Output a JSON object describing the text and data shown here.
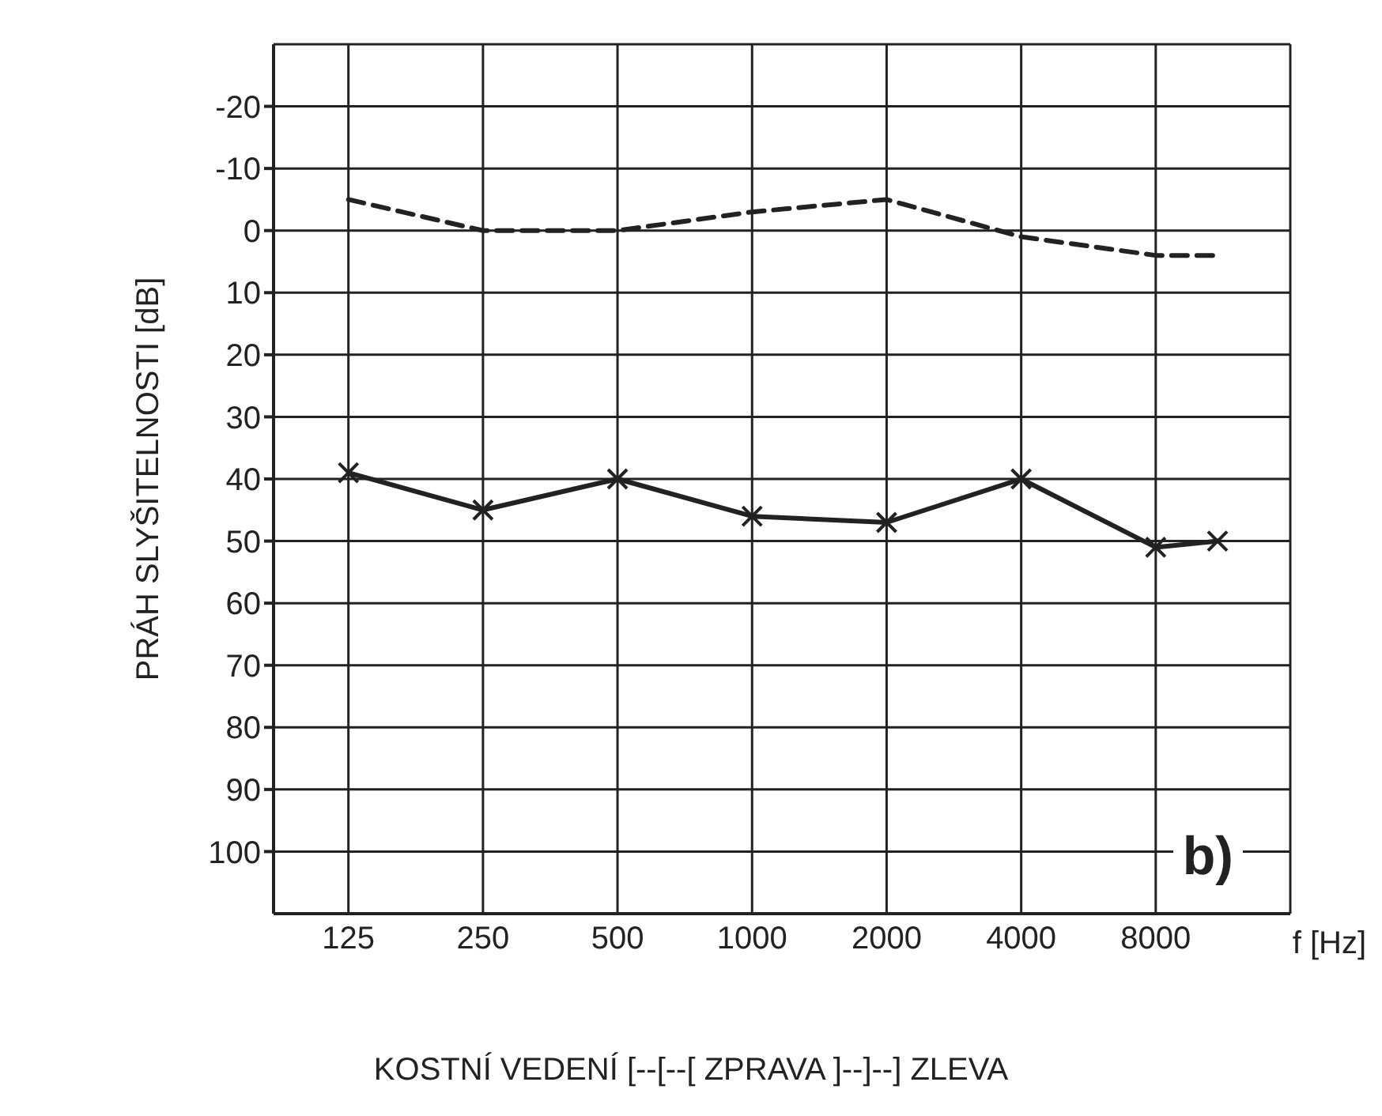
{
  "chart_data": {
    "type": "line",
    "ylabel": "PRÁH SLYŠITELNOSTI [dB]",
    "xlabel": "f [Hz]",
    "log": "x",
    "x": [
      125,
      250,
      500,
      1000,
      2000,
      4000,
      8000,
      11000
    ],
    "series": [
      {
        "color": "#222222",
        "line_style": "dashed",
        "marker": "none",
        "values": [
          -5,
          0,
          0,
          -3,
          -5,
          1,
          4,
          4
        ]
      },
      {
        "color": "#222222",
        "line_style": "solid",
        "marker": "cross",
        "values": [
          39,
          45,
          40,
          46,
          47,
          40,
          51,
          50
        ]
      }
    ],
    "xlim": [
      85,
      16000
    ],
    "xticks": [
      125,
      250,
      500,
      1000,
      2000,
      4000,
      8000
    ],
    "ylim": [
      110,
      -30
    ],
    "yticks": [
      -20,
      -10,
      0,
      10,
      20,
      30,
      40,
      50,
      60,
      70,
      80,
      90,
      100
    ],
    "grid": true,
    "annotations": [
      "b)",
      "KOSTNÍ VEDENÍ [--[--[ ZPRAVA ]--]--] ZLEVA"
    ]
  }
}
